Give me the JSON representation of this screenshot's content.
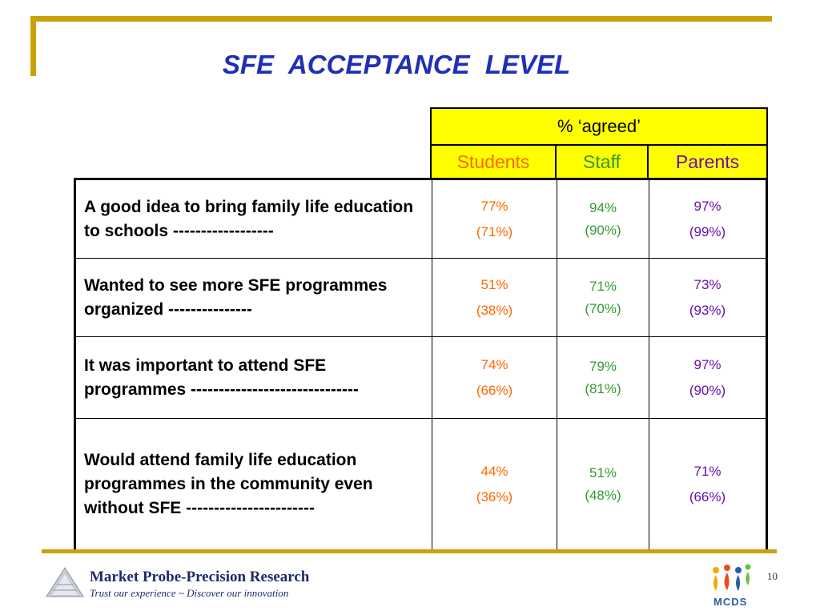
{
  "slide": {
    "title": "SFE  ACCEPTANCE  LEVEL",
    "page_number": "10"
  },
  "table": {
    "header_group": "%  ‘agreed’",
    "columns": [
      "Students",
      "Staff",
      "Parents"
    ],
    "rows": [
      {
        "statement": "A good idea to bring family life education to schools ------------------",
        "students": [
          "77%",
          "(71%)"
        ],
        "staff": [
          "94%",
          "(90%)"
        ],
        "parents": [
          "97%",
          "(99%)"
        ]
      },
      {
        "statement": "Wanted to see more SFE programmes organized ---------------",
        "students": [
          "51%",
          "(38%)"
        ],
        "staff": [
          "71%",
          "(70%)"
        ],
        "parents": [
          "73%",
          "(93%)"
        ]
      },
      {
        "statement": "It was important to attend SFE programmes ------------------------------",
        "students": [
          "74%",
          "(66%)"
        ],
        "staff": [
          "79%",
          "(81%)"
        ],
        "parents": [
          "97%",
          "(90%)"
        ]
      },
      {
        "statement": "Would attend family life education programmes in the community even without SFE -----------------------",
        "students": [
          "44%",
          "(36%)"
        ],
        "staff": [
          "51%",
          "(48%)"
        ],
        "parents": [
          "71%",
          "(66%)"
        ]
      }
    ]
  },
  "footer": {
    "brand": "Market Probe-Precision Research",
    "tagline": "Trust our experience ~ Discover our innovation",
    "partner_logo_text": "MCDS",
    "logo_icons": [
      "market-probe-triangle-logo",
      "mcds-people-logo"
    ]
  },
  "colors": {
    "title": "#1f2fb8",
    "accent_gold": "#c9a20a",
    "header_fill": "#ffff00",
    "students": "#ff6600",
    "staff": "#339933",
    "parents": "#6a0dad"
  }
}
